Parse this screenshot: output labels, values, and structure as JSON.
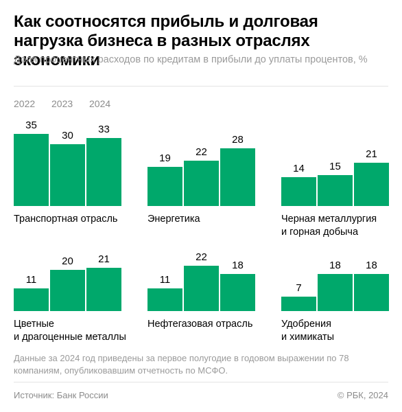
{
  "title": "Как соотносятся прибыль и долговая нагрузка бизнеса в разных отраслях экономики",
  "subtitle": "Доля процентных расходов по кредитам в прибыли до уплаты процентов, %",
  "note": "Данные за 2024 год приведены за первое полугодие в годовом выражении по 78 компаниям, опубликовавшим отчетность по МСФО.",
  "footer": {
    "source": "Источник: Банк России",
    "copyright": "© РБК, 2024"
  },
  "colors": {
    "bar": "#00a86b",
    "text": "#000000",
    "muted": "#9a9a9a"
  },
  "chart_data": {
    "type": "bar",
    "categories": [
      "2022",
      "2023",
      "2024"
    ],
    "ylabel": "%",
    "panels": [
      {
        "name": "Транспортная отрасль",
        "values": [
          35,
          30,
          33
        ]
      },
      {
        "name": "Энергетика",
        "values": [
          19,
          22,
          28
        ]
      },
      {
        "name": "Черная металлургия и горная добыча",
        "values": [
          14,
          15,
          21
        ]
      },
      {
        "name": "Цветные и драгоценные металлы",
        "values": [
          11,
          20,
          21
        ]
      },
      {
        "name": "Нефтегазовая отрасль",
        "values": [
          11,
          22,
          18
        ]
      },
      {
        "name": "Удобрения и химикаты",
        "values": [
          7,
          18,
          18
        ]
      }
    ]
  }
}
